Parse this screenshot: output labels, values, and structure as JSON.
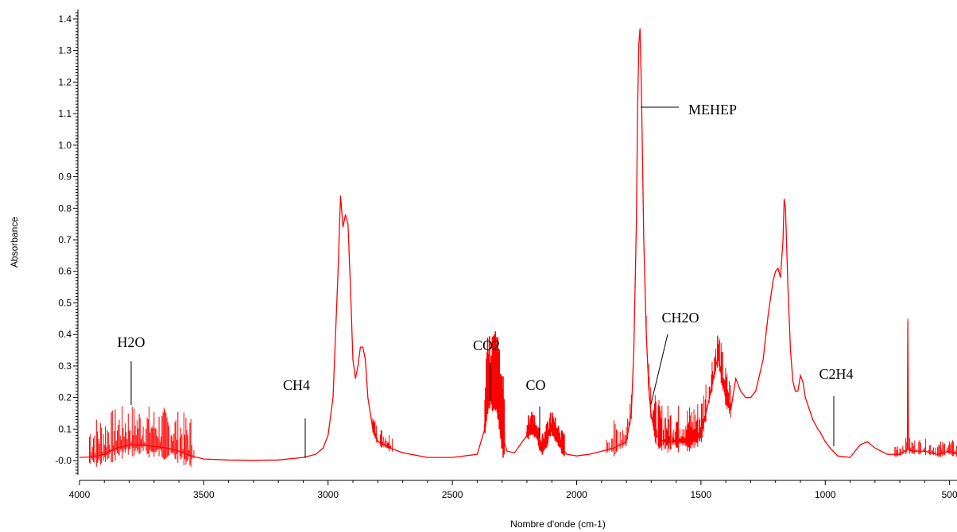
{
  "chart_data": {
    "type": "line",
    "xlabel": "Nombre d'onde (cm-1)",
    "ylabel": "Absorbance",
    "xlim": [
      4000,
      470
    ],
    "ylim": [
      -0.045,
      1.43
    ],
    "x_reversed": true,
    "x_ticks": [
      4000,
      3500,
      3000,
      2500,
      2000,
      1500,
      1000,
      500
    ],
    "x_tick_labels": [
      "4000",
      "3500",
      "3000",
      "2500",
      "2000",
      "1500",
      "1000",
      "500"
    ],
    "y_ticks": [
      0.0,
      0.1,
      0.2,
      0.3,
      0.4,
      0.5,
      0.6,
      0.7,
      0.8,
      0.9,
      1.0,
      1.1,
      1.2,
      1.3,
      1.4
    ],
    "y_tick_labels": [
      "-0.0",
      "0.1",
      "0.2",
      "0.3",
      "0.4",
      "0.5",
      "0.6",
      "0.7",
      "0.8",
      "0.9",
      "1.0",
      "1.1",
      "1.2",
      "1.3",
      "1.4"
    ],
    "grid": false,
    "series": [
      {
        "color": "#ff0000",
        "x": [
          4000,
          3950,
          3900,
          3850,
          3800,
          3750,
          3700,
          3650,
          3600,
          3550,
          3500,
          3400,
          3300,
          3200,
          3100,
          3050,
          3020,
          3000,
          2980,
          2960,
          2950,
          2940,
          2930,
          2920,
          2910,
          2900,
          2890,
          2880,
          2870,
          2860,
          2850,
          2840,
          2820,
          2800,
          2750,
          2700,
          2600,
          2500,
          2400,
          2370,
          2360,
          2350,
          2340,
          2330,
          2320,
          2310,
          2300,
          2280,
          2250,
          2200,
          2180,
          2160,
          2150,
          2140,
          2120,
          2110,
          2100,
          2080,
          2060,
          2040,
          2000,
          1950,
          1900,
          1850,
          1800,
          1780,
          1770,
          1760,
          1755,
          1750,
          1745,
          1740,
          1735,
          1730,
          1720,
          1710,
          1700,
          1680,
          1650,
          1600,
          1550,
          1500,
          1480,
          1460,
          1440,
          1430,
          1420,
          1400,
          1380,
          1360,
          1340,
          1320,
          1300,
          1280,
          1250,
          1230,
          1210,
          1200,
          1190,
          1180,
          1170,
          1165,
          1160,
          1150,
          1140,
          1130,
          1120,
          1110,
          1100,
          1090,
          1080,
          1050,
          1030,
          1020,
          1000,
          980,
          950,
          900,
          860,
          830,
          800,
          750,
          700,
          670,
          668,
          665,
          650,
          600,
          550,
          500,
          470
        ],
        "y": [
          0.01,
          0.012,
          0.02,
          0.04,
          0.05,
          0.05,
          0.045,
          0.04,
          0.03,
          0.015,
          0.005,
          0.002,
          0.001,
          0.002,
          0.01,
          0.02,
          0.04,
          0.08,
          0.2,
          0.6,
          0.84,
          0.74,
          0.78,
          0.75,
          0.55,
          0.32,
          0.26,
          0.3,
          0.36,
          0.36,
          0.32,
          0.2,
          0.1,
          0.06,
          0.04,
          0.025,
          0.01,
          0.01,
          0.02,
          0.1,
          0.2,
          0.22,
          0.21,
          0.22,
          0.21,
          0.15,
          0.08,
          0.03,
          0.025,
          0.08,
          0.1,
          0.08,
          0.05,
          0.03,
          0.06,
          0.09,
          0.1,
          0.07,
          0.04,
          0.02,
          0.015,
          0.02,
          0.03,
          0.04,
          0.06,
          0.15,
          0.35,
          0.75,
          1.1,
          1.32,
          1.37,
          1.2,
          0.95,
          0.7,
          0.4,
          0.23,
          0.14,
          0.08,
          0.06,
          0.06,
          0.06,
          0.08,
          0.15,
          0.22,
          0.3,
          0.33,
          0.28,
          0.2,
          0.16,
          0.26,
          0.22,
          0.2,
          0.2,
          0.22,
          0.32,
          0.46,
          0.57,
          0.6,
          0.61,
          0.58,
          0.7,
          0.83,
          0.8,
          0.55,
          0.35,
          0.25,
          0.22,
          0.22,
          0.27,
          0.25,
          0.2,
          0.13,
          0.1,
          0.09,
          0.06,
          0.04,
          0.015,
          0.01,
          0.05,
          0.06,
          0.04,
          0.02,
          0.02,
          0.035,
          0.44,
          0.035,
          0.03,
          0.03,
          0.02,
          0.03,
          0.02
        ]
      }
    ],
    "annotations": [
      {
        "text": "H2O",
        "x": 3760,
        "y": 0.22
      },
      {
        "text": "CH4",
        "x": 3085,
        "y": 0.04
      },
      {
        "text": "CO2",
        "x": 2320,
        "y": 0.23
      },
      {
        "text": "CO",
        "x": 2130,
        "y": 0.1
      },
      {
        "text": "MEHEP",
        "x": 1740,
        "y": 1.1
      },
      {
        "text": "CH2O",
        "x": 1690,
        "y": 0.2
      },
      {
        "text": "C2H4",
        "x": 950,
        "y": 0.08
      }
    ]
  }
}
